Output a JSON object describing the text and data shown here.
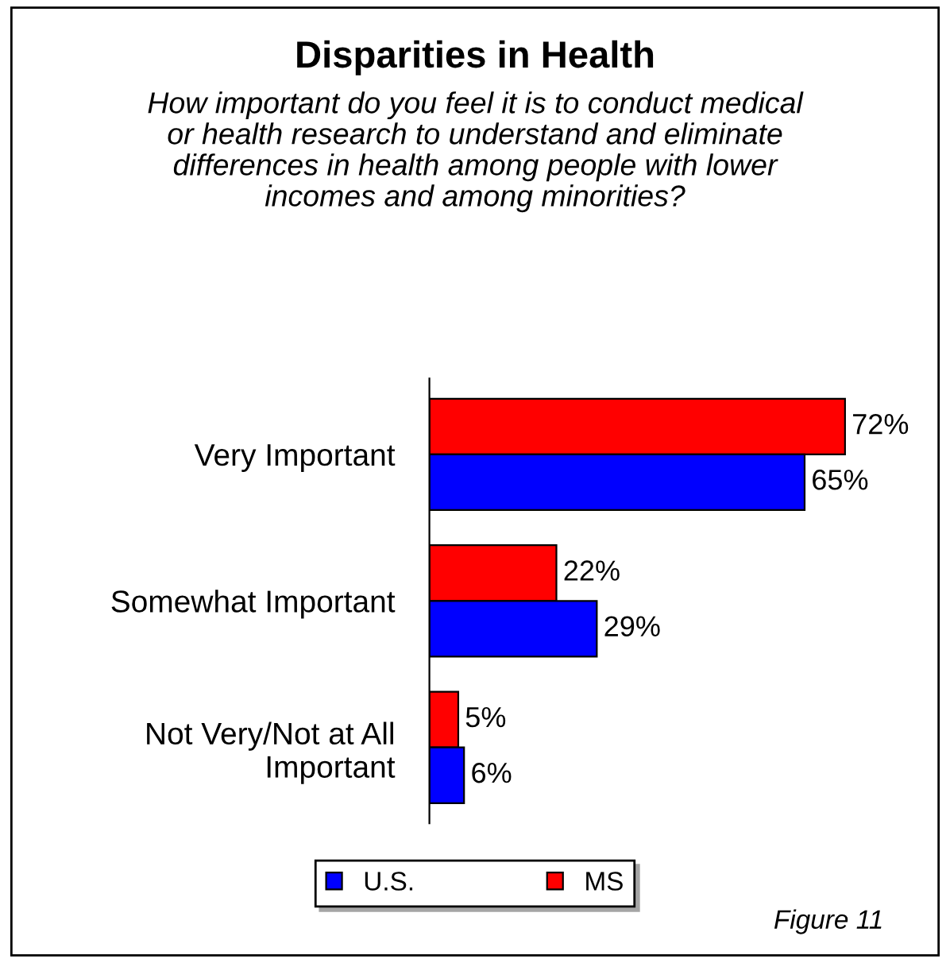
{
  "chart_data": {
    "type": "bar",
    "orientation": "horizontal",
    "title": "Disparities in Health",
    "subtitle": "How important do you feel it is to conduct medical\nor health research to understand and eliminate\ndifferences in health among people with lower\nincomes and among minorities?",
    "categories": [
      "Very Important",
      "Somewhat Important",
      "Not Very/Not at All\nImportant"
    ],
    "series": [
      {
        "name": "MS",
        "color": "#ff0000",
        "values": [
          72,
          22,
          5
        ],
        "value_labels": [
          "72%",
          "22%",
          "5%"
        ]
      },
      {
        "name": "U.S.",
        "color": "#0000ff",
        "values": [
          65,
          29,
          6
        ],
        "value_labels": [
          "65%",
          "29%",
          "6%"
        ]
      }
    ],
    "legend": "bottom",
    "grid": false,
    "tick_labels": "y",
    "annotations": [
      "Figure 11"
    ]
  }
}
